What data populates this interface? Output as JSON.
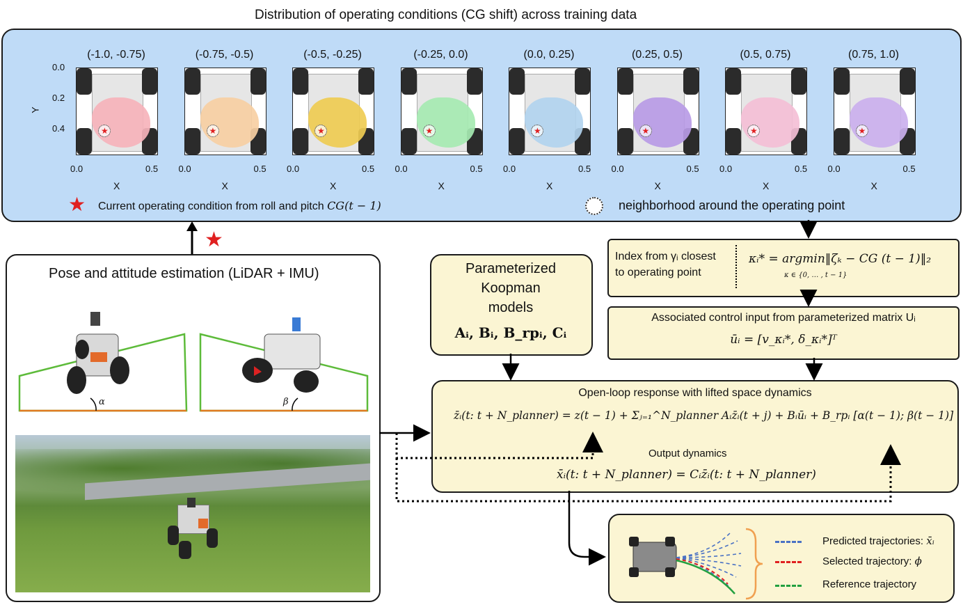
{
  "top_title": "Distribution of operating conditions (CG shift) across training data",
  "panels": [
    {
      "label": "(-1.0, -0.75)",
      "color": "#f6b3bb"
    },
    {
      "label": "(-0.75, -0.5)",
      "color": "#f7cfa3"
    },
    {
      "label": "(-0.5, -0.25)",
      "color": "#efcc52"
    },
    {
      "label": "(-0.25, 0.0)",
      "color": "#a6eab2"
    },
    {
      "label": "(0.0, 0.25)",
      "color": "#b2d4ef"
    },
    {
      "label": "(0.25, 0.5)",
      "color": "#b99be6"
    },
    {
      "label": "(0.5, 0.75)",
      "color": "#f4bfd6"
    },
    {
      "label": "(0.75, 1.0)",
      "color": "#cbb0ee"
    }
  ],
  "axes": {
    "ylabel": "Y",
    "xlabel": "X",
    "yticks": [
      "0.0",
      "0.2",
      "0.4"
    ],
    "xticks": [
      "0.0",
      "0.5"
    ]
  },
  "legend_top": {
    "star_text": "Current operating condition from roll and pitch ",
    "star_math": "CG(t − 1)",
    "circle_text": "neighborhood around the operating point"
  },
  "pose_box": {
    "title": "Pose and attitude estimation (LiDAR + IMU)",
    "alpha": "α",
    "beta": "β"
  },
  "koopman_box": {
    "line1": "Parameterized",
    "line2": "Koopman",
    "line3": "models",
    "matrices": "Aᵢ, Bᵢ, B_rpᵢ, Cᵢ"
  },
  "index_box": {
    "text_line1": "Index from γᵢ closest",
    "text_line2": "to operating point",
    "formula": "κᵢ* = argmin‖ζₖ − CG (t − 1)‖₂",
    "subscript": "κ ∈ {0, … , t − 1}"
  },
  "control_box": {
    "title": "Associated control input from parameterized matrix Uᵢ",
    "formula": "ūᵢ = [v_κᵢ*, δ_κᵢ*]ᵀ"
  },
  "openloop_box": {
    "title": "Open-loop response with lifted space dynamics",
    "formula": "z̄ᵢ(t: t + N_planner) = z(t − 1) + Σⱼ₌₁^N_planner Aᵢz̄ᵢ(t + j) + Bᵢūᵢ + B_rpᵢ [α(t − 1); β(t − 1)]",
    "output_title": "Output dynamics",
    "output_formula": "x̄ᵢ(t: t + N_planner) = Cᵢz̄ᵢ(t: t + N_planner)"
  },
  "traj_legend": {
    "predicted": "Predicted trajectories: ",
    "predicted_sym": "x̄ᵢ",
    "selected": "Selected trajectory: ",
    "selected_sym": "ϕ",
    "reference": "Reference trajectory",
    "color_predicted": "#4a72c4",
    "color_selected": "#e02020",
    "color_reference": "#22a040"
  }
}
